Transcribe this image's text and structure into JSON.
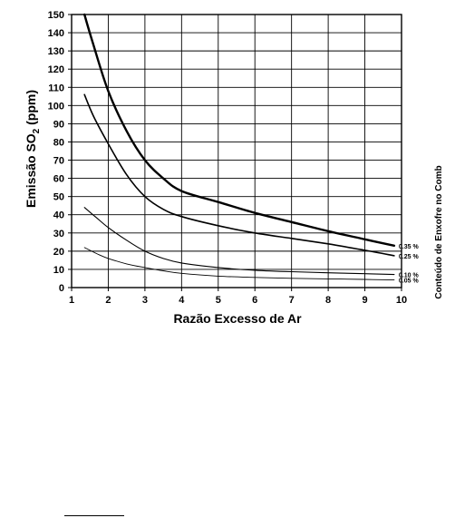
{
  "chart_data": {
    "type": "line",
    "xlabel": "Razão Excesso de Ar",
    "ylabel_main": "Emissão SO",
    "ylabel_sub": "2",
    "ylabel_unit": " (ppm)",
    "side_label": "Conteúdo de Enxofre no Comb",
    "xlim": [
      1,
      10
    ],
    "ylim": [
      0,
      150
    ],
    "x_ticks": [
      1,
      2,
      3,
      4,
      5,
      6,
      7,
      8,
      9,
      10
    ],
    "y_ticks": [
      0,
      10,
      20,
      30,
      40,
      50,
      60,
      70,
      80,
      90,
      100,
      110,
      120,
      130,
      140,
      150
    ],
    "grid": true,
    "series": [
      {
        "name": "0.35 %",
        "stroke": 2.4,
        "points": [
          [
            1.35,
            150
          ],
          [
            1.6,
            133
          ],
          [
            2,
            108
          ],
          [
            2.5,
            86
          ],
          [
            3,
            70
          ],
          [
            3.5,
            60
          ],
          [
            4,
            53
          ],
          [
            5,
            47
          ],
          [
            6,
            41
          ],
          [
            7,
            36
          ],
          [
            8,
            31
          ],
          [
            9,
            26.5
          ],
          [
            9.8,
            23
          ]
        ]
      },
      {
        "name": "0.25 %",
        "stroke": 1.6,
        "points": [
          [
            1.35,
            106
          ],
          [
            1.6,
            94
          ],
          [
            2,
            79
          ],
          [
            2.5,
            62
          ],
          [
            3,
            50
          ],
          [
            3.5,
            43
          ],
          [
            4,
            39
          ],
          [
            5,
            34
          ],
          [
            6,
            30
          ],
          [
            7,
            27
          ],
          [
            8,
            24
          ],
          [
            9,
            20.5
          ],
          [
            9.8,
            17.5
          ]
        ]
      },
      {
        "name": "0.10 %",
        "stroke": 1.1,
        "points": [
          [
            1.35,
            44
          ],
          [
            1.7,
            38
          ],
          [
            2,
            33
          ],
          [
            2.5,
            26
          ],
          [
            3,
            20
          ],
          [
            3.5,
            16
          ],
          [
            4,
            13.5
          ],
          [
            5,
            11
          ],
          [
            6,
            9.5
          ],
          [
            7,
            8.7
          ],
          [
            8,
            8.1
          ],
          [
            9,
            7.6
          ],
          [
            9.8,
            7.2
          ]
        ]
      },
      {
        "name": "0.05 %",
        "stroke": 0.9,
        "points": [
          [
            1.35,
            22
          ],
          [
            1.7,
            18.5
          ],
          [
            2,
            16
          ],
          [
            2.5,
            13
          ],
          [
            3,
            11
          ],
          [
            3.5,
            9.2
          ],
          [
            4,
            7.8
          ],
          [
            5,
            6.3
          ],
          [
            6,
            5.6
          ],
          [
            7,
            5.1
          ],
          [
            8,
            4.8
          ],
          [
            9,
            4.5
          ],
          [
            9.8,
            4.2
          ]
        ]
      }
    ]
  }
}
